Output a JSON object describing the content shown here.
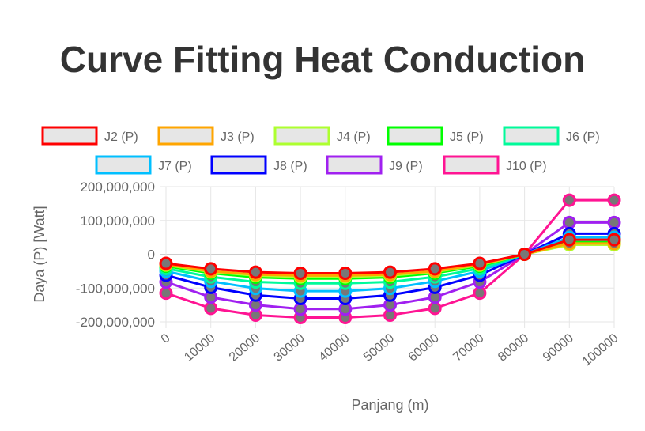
{
  "title": "Curve Fitting Heat Conduction",
  "chart_data": {
    "type": "line",
    "title": "Curve Fitting Heat Conduction",
    "xlabel": "Panjang (m)",
    "ylabel": "Daya (P) [Watt]",
    "ylim": [
      -200000000,
      200000000
    ],
    "yticks": [
      200000000,
      100000000,
      0,
      -100000000,
      -200000000
    ],
    "ytick_labels": [
      "200,000,000",
      "100,000,000",
      "0",
      "-100,000,000",
      "-200,000,000"
    ],
    "categories": [
      "0",
      "10000",
      "20000",
      "30000",
      "40000",
      "50000",
      "60000",
      "70000",
      "80000",
      "90000",
      "100000"
    ],
    "legend_position": "top",
    "grid": true,
    "series": [
      {
        "name": "J2 (P)",
        "color": "#ff0000",
        "values": [
          -27000000.0,
          -43000000.0,
          -53000000.0,
          -56000000.0,
          -56000000.0,
          -53000000.0,
          -43000000.0,
          -27000000.0,
          0,
          43000000.0,
          43000000.0
        ]
      },
      {
        "name": "J3 (P)",
        "color": "#ffa500",
        "values": [
          -30000000.0,
          -50000000.0,
          -60000000.0,
          -63000000.0,
          -63000000.0,
          -60000000.0,
          -50000000.0,
          -30000000.0,
          0,
          32000000.0,
          32000000.0
        ]
      },
      {
        "name": "J4 (P)",
        "color": "#adff2f",
        "values": [
          -32000000.0,
          -52000000.0,
          -63000000.0,
          -67000000.0,
          -67000000.0,
          -63000000.0,
          -52000000.0,
          -32000000.0,
          0,
          28000000.0,
          28000000.0
        ]
      },
      {
        "name": "J5 (P)",
        "color": "#00ff00",
        "values": [
          -35000000.0,
          -56000000.0,
          -68000000.0,
          -72000000.0,
          -72000000.0,
          -68000000.0,
          -56000000.0,
          -35000000.0,
          0,
          35000000.0,
          35000000.0
        ]
      },
      {
        "name": "J6 (P)",
        "color": "#00fa9a",
        "values": [
          -42000000.0,
          -67000000.0,
          -82000000.0,
          -86000000.0,
          -86000000.0,
          -82000000.0,
          -67000000.0,
          -42000000.0,
          0,
          42000000.0,
          42000000.0
        ]
      },
      {
        "name": "J7 (P)",
        "color": "#00bfff",
        "values": [
          -50000000.0,
          -80000000.0,
          -101000000.0,
          -109000000.0,
          -109000000.0,
          -101000000.0,
          -80000000.0,
          -50000000.0,
          0,
          50000000.0,
          50000000.0
        ]
      },
      {
        "name": "J8 (P)",
        "color": "#0000ff",
        "values": [
          -62000000.0,
          -98000000.0,
          -121000000.0,
          -131000000.0,
          -131000000.0,
          -121000000.0,
          -98000000.0,
          -62000000.0,
          0,
          61000000.0,
          61000000.0
        ]
      },
      {
        "name": "J9 (P)",
        "color": "#a020f0",
        "values": [
          -82000000.0,
          -127000000.0,
          -150000000.0,
          -162000000.0,
          -162000000.0,
          -150000000.0,
          -127000000.0,
          -82000000.0,
          0,
          94000000.0,
          94000000.0
        ]
      },
      {
        "name": "J10 (P)",
        "color": "#ff1493",
        "values": [
          -115000000.0,
          -160000000.0,
          -180000000.0,
          -187000000.0,
          -187000000.0,
          -180000000.0,
          -160000000.0,
          -115000000.0,
          0,
          160000000.0,
          160000000.0
        ]
      }
    ]
  }
}
